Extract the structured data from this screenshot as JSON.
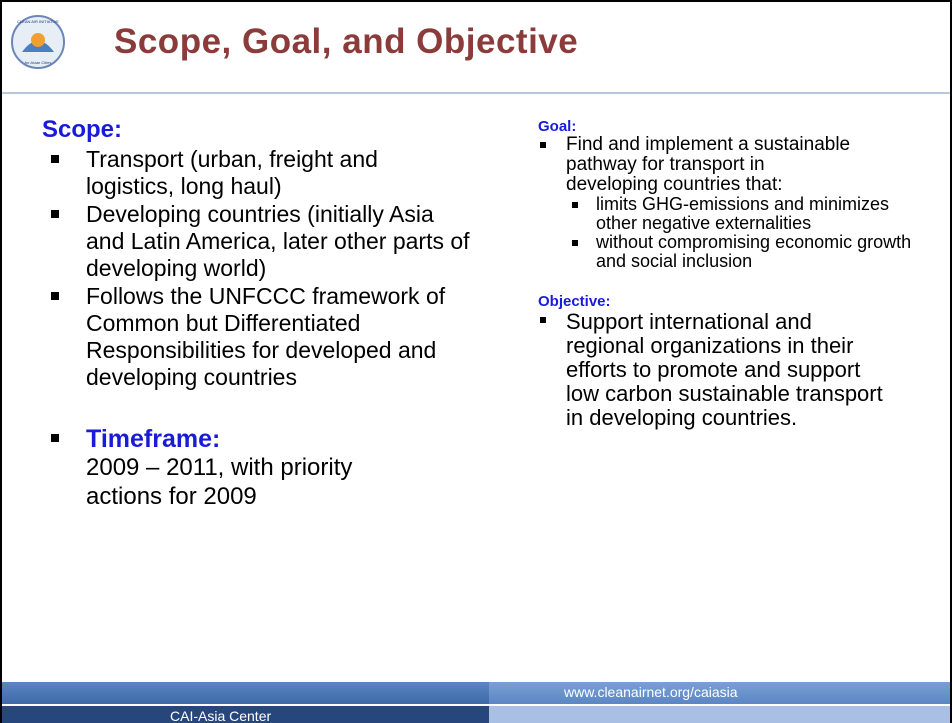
{
  "logo": {
    "top": "CLEAN AIR INITIATIVE",
    "bottom": "for Asian Cities"
  },
  "header": {
    "title": "Scope, Goal, and Objective"
  },
  "scope": {
    "heading": "Scope:",
    "items": [
      "Transport (urban, freight and logistics, long haul)",
      "Developing countries (initially Asia and Latin America, later other parts of developing world)",
      "Follows the UNFCCC framework of Common but Differentiated Responsibilities for developed and developing countries"
    ]
  },
  "timeframe": {
    "heading": "Timeframe:",
    "text": "2009 – 2011, with priority actions for 2009"
  },
  "goal": {
    "heading": "Goal:",
    "text": "Find and implement a sustainable pathway for transport in developing countries that:",
    "subitems": [
      "limits GHG-emissions and minimizes other negative externalities",
      "without compromising economic growth and social inclusion"
    ]
  },
  "objective": {
    "heading": "Objective:",
    "text": "Support international and regional organizations in their efforts to promote and support low carbon sustainable transport in developing countries."
  },
  "footer": {
    "url": "www.cleanairnet.org/caiasia",
    "org": "CAI-Asia Center"
  }
}
